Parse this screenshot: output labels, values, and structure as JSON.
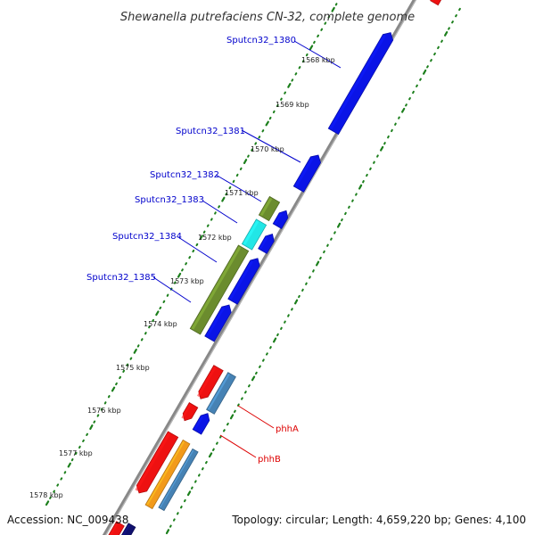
{
  "title": "Shewanella putrefaciens CN-32, complete genome",
  "footer": {
    "accession": "Accession: NC_009438",
    "summary": "Topology: circular; Length: 4,659,220 bp; Genes: 4,100"
  },
  "colors": {
    "blue": "#0a14e6",
    "olive": "#6b8c2e",
    "cyan": "#22e6e6",
    "red": "#ee1111",
    "steelblue": "#4682b4",
    "orange": "#f29a1a",
    "navy": "#10106e",
    "backbone": "#888888",
    "tick": "#1c7f1c",
    "label_blue": "#0000cc",
    "label_red": "#dd0000"
  },
  "kbp_ticks": [
    "1568 kbp",
    "1569 kbp",
    "1570 kbp",
    "1571 kbp",
    "1572 kbp",
    "1573 kbp",
    "1574 kbp",
    "1575 kbp",
    "1576 kbp",
    "1577 kbp",
    "1578 kbp"
  ],
  "gene_labels": [
    {
      "text": "Sputcn32_1380",
      "color": "label_blue"
    },
    {
      "text": "Sputcn32_1381",
      "color": "label_blue"
    },
    {
      "text": "Sputcn32_1382",
      "color": "label_blue"
    },
    {
      "text": "Sputcn32_1383",
      "color": "label_blue"
    },
    {
      "text": "Sputcn32_1384",
      "color": "label_blue"
    },
    {
      "text": "Sputcn32_1385",
      "color": "label_blue"
    },
    {
      "text": "phhA",
      "color": "label_red"
    },
    {
      "text": "phhB",
      "color": "label_red"
    }
  ]
}
